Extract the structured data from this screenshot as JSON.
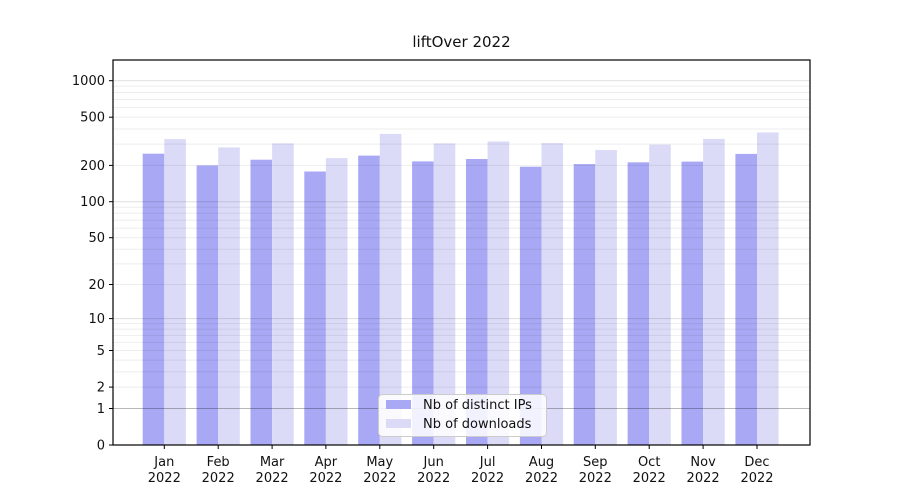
{
  "figure": {
    "title": "liftOver 2022"
  },
  "chart_data": {
    "type": "bar",
    "title": "liftOver 2022",
    "x_months": [
      "Jan",
      "Feb",
      "Mar",
      "Apr",
      "May",
      "Jun",
      "Jul",
      "Aug",
      "Sep",
      "Oct",
      "Nov",
      "Dec"
    ],
    "x_year": "2022",
    "series": [
      {
        "name": "Nb of distinct IPs",
        "color": "#a8a8f5",
        "values": [
          250,
          200,
          223,
          178,
          241,
          216,
          226,
          195,
          205,
          212,
          215,
          249
        ]
      },
      {
        "name": "Nb of downloads",
        "color": "#dbdbf8",
        "values": [
          330,
          282,
          304,
          230,
          364,
          304,
          316,
          306,
          268,
          297,
          331,
          375
        ]
      }
    ],
    "y_ticks": [
      0,
      1,
      2,
      5,
      10,
      20,
      50,
      100,
      200,
      500,
      1000
    ],
    "y_scale": "symlog (position proportional to log10(value+1))",
    "ylim": [
      0,
      1470
    ],
    "grid": "horizontal, log minor and major lines",
    "legend_position": "lower center",
    "xlabel": "",
    "ylabel": ""
  },
  "colors": {
    "bar_dark": "#a8a8f5",
    "bar_light": "#dbdbf8",
    "spine": "#000000",
    "text": "#111111",
    "grid_minor": "rgba(0,0,0,0.07)",
    "grid_major": "rgba(0,0,0,0.13)",
    "grid_unit_line": "rgba(0,0,0,0.28)",
    "legend_border": "#cccccc",
    "legend_bg": "rgba(255,255,255,0.85)"
  }
}
